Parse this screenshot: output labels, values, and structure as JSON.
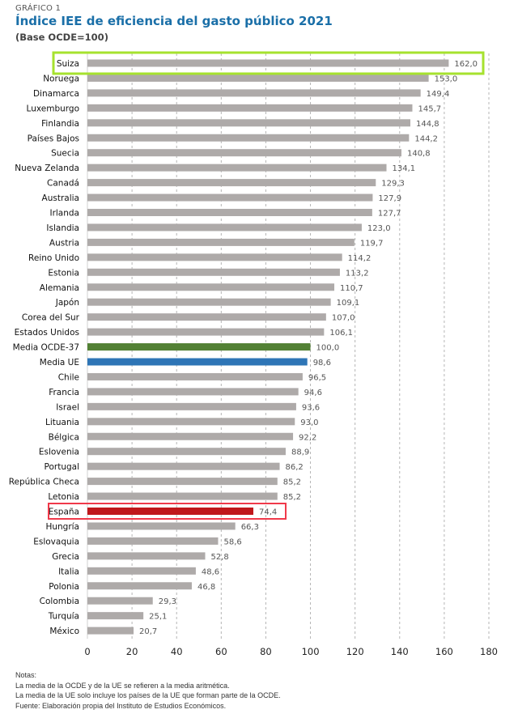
{
  "header": {
    "kicker": "GRÁFICO 1",
    "title": "Índice IEE de eficiencia del gasto público 2021",
    "subtitle": "(Base OCDE=100)"
  },
  "chart_data": {
    "type": "bar",
    "orientation": "horizontal",
    "title": "Índice IEE de eficiencia del gasto público 2021",
    "subtitle": "(Base OCDE=100)",
    "xlabel": "",
    "ylabel": "",
    "xlim": [
      0,
      180
    ],
    "xticks": [
      0,
      20,
      40,
      60,
      80,
      100,
      120,
      140,
      160,
      180
    ],
    "grid": "vertical dashed",
    "categories": [
      "Suiza",
      "Noruega",
      "Dinamarca",
      "Luxemburgo",
      "Finlandia",
      "Países Bajos",
      "Suecia",
      "Nueva Zelanda",
      "Canadá",
      "Australia",
      "Irlanda",
      "Islandia",
      "Austria",
      "Reino Unido",
      "Estonia",
      "Alemania",
      "Japón",
      "Corea del Sur",
      "Estados Unidos",
      "Media OCDE-37",
      "Media UE",
      "Chile",
      "Francia",
      "Israel",
      "Lituania",
      "Bélgica",
      "Eslovenia",
      "Portugal",
      "República Checa",
      "Letonia",
      "España",
      "Hungría",
      "Eslovaquia",
      "Grecia",
      "Italia",
      "Polonia",
      "Colombia",
      "Turquía",
      "México"
    ],
    "values": [
      162.0,
      153.0,
      149.4,
      145.7,
      144.8,
      144.2,
      140.8,
      134.1,
      129.3,
      127.9,
      127.7,
      123.0,
      119.7,
      114.2,
      113.2,
      110.7,
      109.1,
      107.0,
      106.1,
      100.0,
      98.6,
      96.5,
      94.6,
      93.6,
      93.0,
      92.2,
      88.9,
      86.2,
      85.2,
      85.2,
      74.4,
      66.3,
      58.6,
      52.8,
      48.6,
      46.8,
      29.3,
      25.1,
      20.7
    ],
    "labels": [
      "162,0",
      "153,0",
      "149,4",
      "145,7",
      "144,8",
      "144,2",
      "140,8",
      "134,1",
      "129,3",
      "127,9",
      "127,7",
      "123,0",
      "119,7",
      "114,2",
      "113,2",
      "110,7",
      "109,1",
      "107,0",
      "106,1",
      "100,0",
      "98,6",
      "96,5",
      "94,6",
      "93,6",
      "93,0",
      "92,2",
      "88,9",
      "86,2",
      "85,2",
      "85,2",
      "74,4",
      "66,3",
      "58,6",
      "52,8",
      "48,6",
      "46,8",
      "29,3",
      "25,1",
      "20,7"
    ],
    "colors": {
      "default": "#aeaaa9",
      "Media OCDE-37": "#538135",
      "Media UE": "#2e75b6",
      "España": "#c0171b"
    },
    "highlights": [
      {
        "category": "Suiza",
        "color": "#a6e22e"
      },
      {
        "category": "España",
        "color": "#f0394a"
      }
    ]
  },
  "notes": {
    "heading": "Notas:",
    "lines": [
      "La media de la OCDE y de la UE se refieren a la media aritmética.",
      "La media de la UE solo incluye los países de la UE que forman parte de la OCDE.",
      "Fuente: Elaboración propia del Instituto de Estudios Económicos."
    ]
  }
}
